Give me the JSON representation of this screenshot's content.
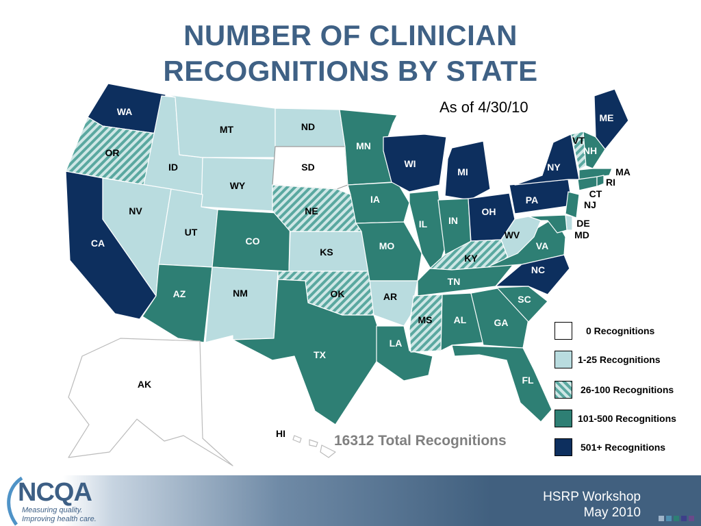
{
  "title_line1": "NUMBER OF CLINICIAN",
  "title_line2": "RECOGNITIONS BY STATE",
  "as_of": "As of 4/30/10",
  "total": "16312 Total Recognitions",
  "colors": {
    "none": "#ffffff",
    "low": "#b9dcdf",
    "hatch": "#5aa8a0",
    "mid": "#2e7f74",
    "high": "#0d2f5e",
    "title": "#3f6185"
  },
  "legend": [
    {
      "label": "0 Recognitions",
      "category": "none"
    },
    {
      "label": "1-25 Recognitions",
      "category": "low"
    },
    {
      "label": "26-100 Recognitions",
      "category": "hatch"
    },
    {
      "label": "101-500 Recognitions",
      "category": "mid"
    },
    {
      "label": "501+  Recognitions",
      "category": "high"
    }
  ],
  "states": {
    "WA": "high",
    "OR": "hatch",
    "CA": "high",
    "ID": "low",
    "NV": "low",
    "MT": "low",
    "WY": "low",
    "UT": "low",
    "AZ": "mid",
    "CO": "mid",
    "NM": "low",
    "ND": "low",
    "SD": "none",
    "NE": "hatch",
    "KS": "low",
    "OK": "hatch",
    "TX": "mid",
    "MN": "mid",
    "IA": "mid",
    "MO": "mid",
    "AR": "low",
    "LA": "mid",
    "WI": "high",
    "IL": "mid",
    "MI": "high",
    "IN": "mid",
    "OH": "high",
    "KY": "hatch",
    "TN": "mid",
    "MS": "hatch",
    "AL": "mid",
    "GA": "mid",
    "FL": "mid",
    "SC": "mid",
    "NC": "high",
    "VA": "mid",
    "WV": "low",
    "PA": "high",
    "NY": "high",
    "ME": "high",
    "VT": "hatch",
    "NH": "mid",
    "MA": "mid",
    "CT": "mid",
    "RI": "mid",
    "NJ": "mid",
    "DE": "low",
    "MD": "mid",
    "AK": "none",
    "HI": "none"
  },
  "footer": {
    "logo": "NCQA",
    "tagline1": "Measuring quality.",
    "tagline2": "Improving health care.",
    "event": "HSRP Workshop",
    "date": "May 2010"
  }
}
